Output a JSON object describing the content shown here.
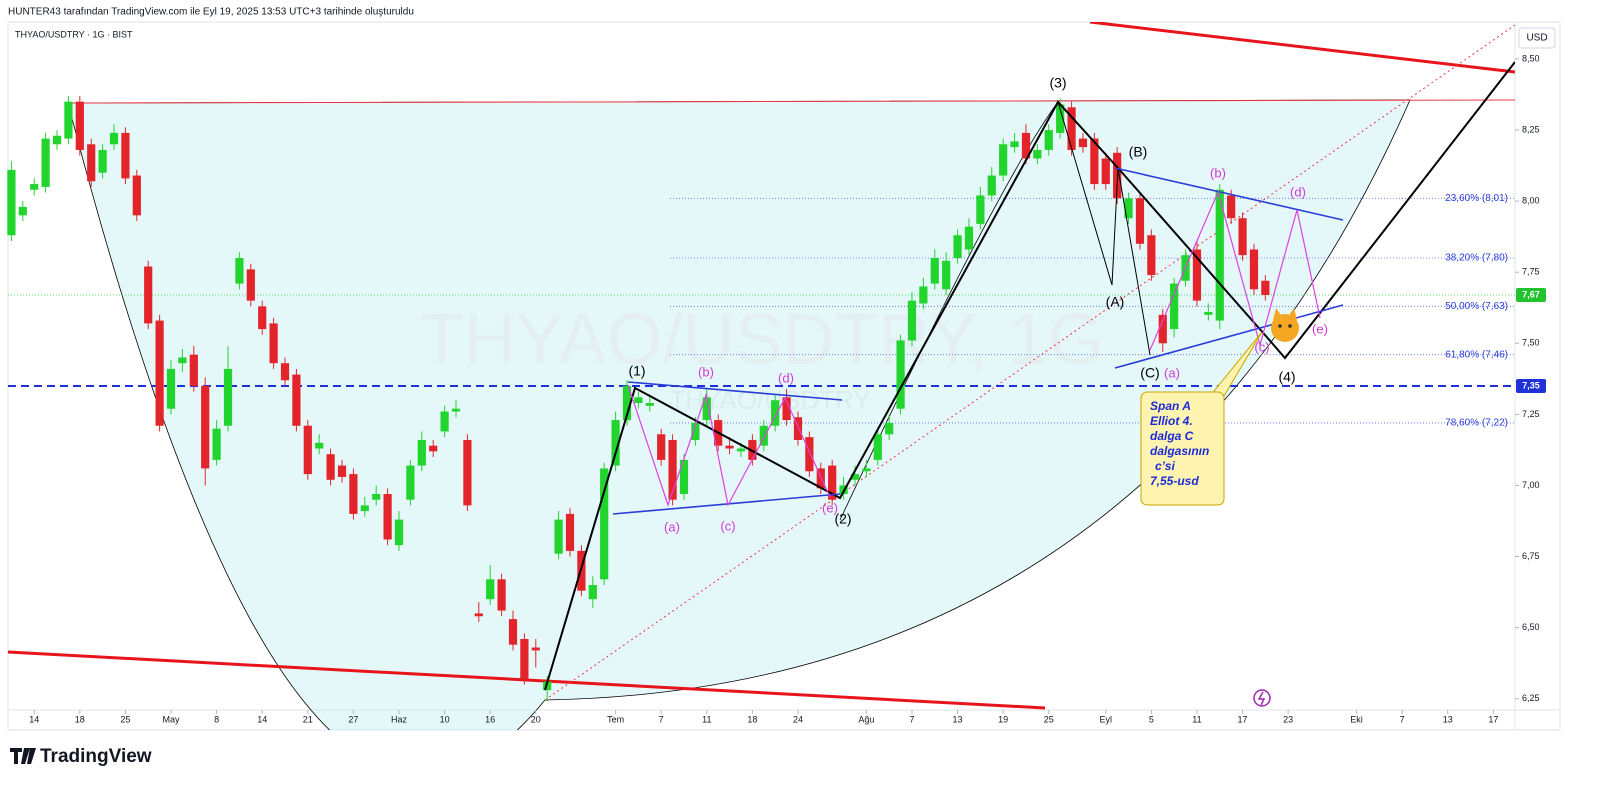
{
  "header": "HUNTER43 tarafından TradingView.com ile Eyl 19, 2025 13:53 UTC+3 tarihinde oluşturuldu",
  "logo": "TradingView",
  "chart_data": {
    "type": "candlestick",
    "symbol": "THYAO/USDTRY · 1G · BIST",
    "watermark": "THYAO/USDTRY, 1G",
    "watermark_small": "THYAO/USDTRY",
    "currency": "USD",
    "up_color": "#22d42e",
    "down_color": "#e3242b",
    "open": [
      7.88,
      7.95,
      8.04,
      8.05,
      8.2,
      8.22,
      8.35,
      8.2,
      8.1,
      8.2,
      8.24,
      8.09,
      7.77,
      7.58,
      7.27,
      7.43,
      7.46,
      7.35,
      7.09,
      7.21,
      7.71,
      7.76,
      7.63,
      7.57,
      7.43,
      7.39,
      7.21,
      7.13,
      7.11,
      7.07,
      7.04,
      6.91,
      6.95,
      6.97,
      6.79,
      6.95,
      7.07,
      7.14,
      7.19,
      7.26,
      7.16,
      6.55,
      6.6,
      6.67,
      6.53,
      6.46,
      6.43,
      6.28,
      6.76,
      6.9,
      6.77,
      6.6,
      6.67,
      7.07,
      7.23,
      7.29,
      7.28,
      7.18,
      7.16,
      6.97,
      7.16,
      7.23,
      7.23,
      7.14,
      7.12,
      7.16,
      7.14,
      7.21,
      7.31,
      7.24,
      7.17,
      7.06,
      7.07,
      6.97,
      7.02,
      7.05,
      7.09,
      7.18,
      7.27,
      7.51,
      7.64,
      7.71,
      7.69,
      7.8,
      7.83,
      7.92,
      8.02,
      8.09,
      8.19,
      8.24,
      8.15,
      8.18,
      8.24,
      8.33,
      8.22,
      8.22,
      8.15,
      8.17,
      7.94,
      8.01,
      7.88,
      7.6,
      7.55,
      7.72,
      7.83,
      7.6,
      7.58,
      8.02,
      7.94,
      7.83,
      7.72
    ],
    "high": [
      8.14,
      8.0,
      8.08,
      8.24,
      8.25,
      8.37,
      8.37,
      8.22,
      8.2,
      8.27,
      8.26,
      8.11,
      7.79,
      7.6,
      7.44,
      7.48,
      7.49,
      7.38,
      7.23,
      7.49,
      7.82,
      7.78,
      7.65,
      7.59,
      7.45,
      7.41,
      7.23,
      7.18,
      7.13,
      7.09,
      7.06,
      6.96,
      7.0,
      6.99,
      6.91,
      7.09,
      7.19,
      7.16,
      7.28,
      7.3,
      7.18,
      6.59,
      6.72,
      6.69,
      6.56,
      6.48,
      6.46,
      6.33,
      6.91,
      6.92,
      6.79,
      6.68,
      7.08,
      7.26,
      7.37,
      7.33,
      7.31,
      7.2,
      7.18,
      7.11,
      7.24,
      7.34,
      7.25,
      7.17,
      7.15,
      7.18,
      7.23,
      7.32,
      7.34,
      7.26,
      7.19,
      7.08,
      7.09,
      7.03,
      7.07,
      7.09,
      7.2,
      7.25,
      7.53,
      7.68,
      7.73,
      7.83,
      7.82,
      7.9,
      7.94,
      8.05,
      8.12,
      8.22,
      8.24,
      8.27,
      8.2,
      8.27,
      8.36,
      8.35,
      8.24,
      8.24,
      8.17,
      8.19,
      8.03,
      8.03,
      7.9,
      7.62,
      7.73,
      7.83,
      7.86,
      7.64,
      8.06,
      8.04,
      7.96,
      7.85,
      7.74
    ],
    "low": [
      7.86,
      7.93,
      8.02,
      8.03,
      8.18,
      8.2,
      8.16,
      8.05,
      8.08,
      8.18,
      8.06,
      7.93,
      7.55,
      7.19,
      7.25,
      7.4,
      7.33,
      7.0,
      7.07,
      7.19,
      7.69,
      7.63,
      7.53,
      7.41,
      7.35,
      7.19,
      7.02,
      7.11,
      7.0,
      7.01,
      6.88,
      6.89,
      6.93,
      6.79,
      6.77,
      6.93,
      7.05,
      7.1,
      7.17,
      7.24,
      6.91,
      6.52,
      6.58,
      6.54,
      6.42,
      6.3,
      6.36,
      6.24,
      6.74,
      6.75,
      6.61,
      6.57,
      6.65,
      7.05,
      7.21,
      7.27,
      7.26,
      7.07,
      6.93,
      6.95,
      7.14,
      7.21,
      7.12,
      7.11,
      7.1,
      7.07,
      7.12,
      7.19,
      7.21,
      7.14,
      7.03,
      6.97,
      6.93,
      6.95,
      7.0,
      7.03,
      7.07,
      7.16,
      7.25,
      7.49,
      7.62,
      7.69,
      7.67,
      7.78,
      7.81,
      7.9,
      8.0,
      8.07,
      8.17,
      8.13,
      8.13,
      8.16,
      8.22,
      8.16,
      8.17,
      8.04,
      8.04,
      7.99,
      7.92,
      7.83,
      7.72,
      7.47,
      7.52,
      7.7,
      7.63,
      7.58,
      7.55,
      7.92,
      7.79,
      7.67,
      7.65
    ],
    "close": [
      8.11,
      7.98,
      8.06,
      8.22,
      8.23,
      8.35,
      8.18,
      8.07,
      8.18,
      8.24,
      8.08,
      7.95,
      7.57,
      7.21,
      7.41,
      7.45,
      7.35,
      7.06,
      7.2,
      7.41,
      7.8,
      7.65,
      7.55,
      7.43,
      7.37,
      7.21,
      7.04,
      7.15,
      7.02,
      7.03,
      6.9,
      6.93,
      6.97,
      6.81,
      6.88,
      7.07,
      7.16,
      7.12,
      7.26,
      7.27,
      6.93,
      6.54,
      6.67,
      6.56,
      6.44,
      6.32,
      6.42,
      6.31,
      6.88,
      6.77,
      6.63,
      6.65,
      7.06,
      7.23,
      7.35,
      7.31,
      7.29,
      7.09,
      6.95,
      7.09,
      7.22,
      7.31,
      7.14,
      7.13,
      7.13,
      7.09,
      7.21,
      7.3,
      7.23,
      7.16,
      7.05,
      6.99,
      6.95,
      7.0,
      7.04,
      7.06,
      7.18,
      7.22,
      7.51,
      7.65,
      7.7,
      7.8,
      7.79,
      7.88,
      7.91,
      8.02,
      8.09,
      8.2,
      8.21,
      8.15,
      8.18,
      8.25,
      8.34,
      8.18,
      8.19,
      8.06,
      8.06,
      8.01,
      8.01,
      7.85,
      7.74,
      7.5,
      7.71,
      7.81,
      7.65,
      7.61,
      8.04,
      7.94,
      7.81,
      7.69,
      7.67
    ],
    "xlim": [
      -0.3,
      131.9
    ],
    "xticks": [
      {
        "value": 2,
        "label": "14"
      },
      {
        "value": 6,
        "label": "18"
      },
      {
        "value": 10,
        "label": "25"
      },
      {
        "value": 14,
        "label": "May"
      },
      {
        "value": 18,
        "label": "8"
      },
      {
        "value": 22,
        "label": "14"
      },
      {
        "value": 26,
        "label": "21"
      },
      {
        "value": 30,
        "label": "27"
      },
      {
        "value": 34,
        "label": "Haz"
      },
      {
        "value": 38,
        "label": "10"
      },
      {
        "value": 42,
        "label": "16"
      },
      {
        "value": 46,
        "label": "20"
      },
      {
        "value": 53,
        "label": "Tem"
      },
      {
        "value": 57,
        "label": "7"
      },
      {
        "value": 61,
        "label": "11"
      },
      {
        "value": 65,
        "label": "18"
      },
      {
        "value": 69,
        "label": "24"
      },
      {
        "value": 75,
        "label": "Ağu"
      },
      {
        "value": 79,
        "label": "7"
      },
      {
        "value": 83,
        "label": "13"
      },
      {
        "value": 87,
        "label": "19"
      },
      {
        "value": 91,
        "label": "25"
      },
      {
        "value": 96,
        "label": "Eyl"
      },
      {
        "value": 100,
        "label": "5"
      },
      {
        "value": 104,
        "label": "11"
      },
      {
        "value": 108,
        "label": "17"
      },
      {
        "value": 112,
        "label": "23"
      },
      {
        "value": 118,
        "label": "Eki"
      },
      {
        "value": 122,
        "label": "7"
      },
      {
        "value": 126,
        "label": "13"
      },
      {
        "value": 130,
        "label": "17"
      }
    ],
    "ylim": [
      6.14,
      8.63
    ],
    "yticks": [
      {
        "value": 6.25,
        "label": "6,25"
      },
      {
        "value": 6.5,
        "label": "6,50"
      },
      {
        "value": 6.75,
        "label": "6,75"
      },
      {
        "value": 7,
        "label": "7,00"
      },
      {
        "value": 7.25,
        "label": "7,25"
      },
      {
        "value": 7.5,
        "label": "7,50"
      },
      {
        "value": 7.75,
        "label": "7,75"
      },
      {
        "value": 8,
        "label": "8,00"
      },
      {
        "value": 8.25,
        "label": "8,25"
      },
      {
        "value": 8.5,
        "label": "8,50"
      }
    ],
    "last_price": {
      "value": 7.67,
      "label": "7,67"
    },
    "level_line": {
      "value": 7.35,
      "label": "7,35"
    },
    "fib_levels": [
      {
        "value": 8.01,
        "label": "23,60% (8,01)"
      },
      {
        "value": 7.8,
        "label": "38,20% (7,80)"
      },
      {
        "value": 7.63,
        "label": "50,00% (7,63)"
      },
      {
        "value": 7.46,
        "label": "61,80% (7,46)"
      },
      {
        "value": 7.22,
        "label": "78,60% (7,22)"
      }
    ],
    "wave_labels": [
      "(1)",
      "(2)",
      "(3)",
      "(4)",
      "(A)",
      "(B)",
      "(C)"
    ],
    "sub_waves_1": [
      "(a)",
      "(b)",
      "(c)",
      "(d)",
      "(e)"
    ],
    "sub_waves_2": [
      "(a)",
      "(b)",
      "(c)",
      "(d)",
      "(e)"
    ],
    "callout": [
      "Span A",
      "Elliot 4.",
      "dalga C",
      "dalgasının",
      "c’si",
      "7,55-usd"
    ]
  }
}
